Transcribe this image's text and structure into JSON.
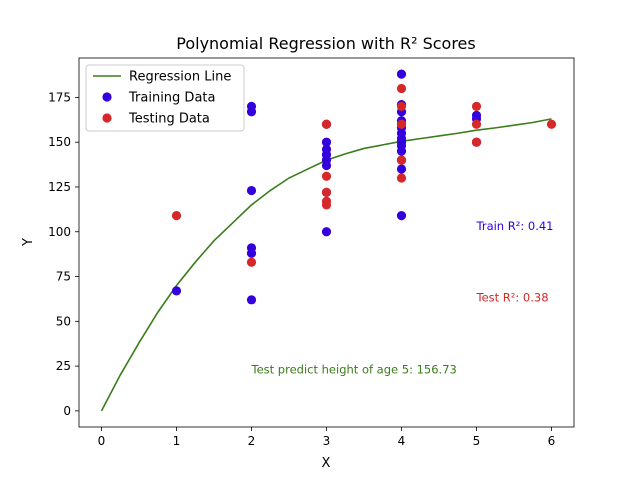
{
  "chart_data": {
    "type": "scatter",
    "title": "Polynomial Regression with R² Scores",
    "xlabel": "X",
    "ylabel": "Y",
    "xlim": [
      -0.3,
      6.3
    ],
    "ylim": [
      -9,
      197
    ],
    "xticks": [
      0,
      1,
      2,
      3,
      4,
      5,
      6
    ],
    "yticks": [
      0,
      25,
      50,
      75,
      100,
      125,
      150,
      175
    ],
    "legend_position": "top-left",
    "colors": {
      "regression": "#3a7d1b",
      "training": "#3300dd",
      "testing": "#d62828"
    },
    "legend": {
      "regression": "Regression Line",
      "training": "Training Data",
      "testing": "Testing Data"
    },
    "regression_line": {
      "x": [
        0,
        0.25,
        0.5,
        0.75,
        1,
        1.25,
        1.5,
        1.75,
        2,
        2.25,
        2.5,
        2.75,
        3,
        3.25,
        3.5,
        3.75,
        4,
        4.25,
        4.5,
        4.75,
        5,
        5.25,
        5.5,
        5.75,
        6
      ],
      "y": [
        0,
        20,
        38,
        55,
        70,
        83,
        95,
        105,
        115,
        123,
        130,
        135,
        140,
        143.5,
        146.5,
        148.5,
        150.5,
        152,
        153.5,
        155,
        156.7,
        158,
        159.5,
        161,
        163
      ]
    },
    "series": [
      {
        "name": "Training Data",
        "color_key": "training",
        "x": [
          1,
          2,
          2,
          2,
          2,
          2,
          2,
          3,
          3,
          3,
          3,
          3,
          3,
          3,
          3,
          4,
          4,
          4,
          4,
          4,
          4,
          4,
          4,
          4,
          4,
          4,
          4,
          4,
          4,
          5,
          5,
          5
        ],
        "y": [
          67,
          62,
          88,
          91,
          123,
          167,
          170,
          100,
          122,
          137,
          140,
          143,
          146,
          150,
          160,
          109,
          135,
          140,
          145,
          148,
          150,
          152,
          155,
          158,
          160,
          162,
          167,
          171,
          188,
          150,
          163,
          165
        ]
      },
      {
        "name": "Testing Data",
        "color_key": "testing",
        "x": [
          1,
          2,
          3,
          3,
          3,
          3,
          3,
          4,
          4,
          4,
          4,
          4,
          5,
          5,
          5,
          6
        ],
        "y": [
          109,
          83,
          115,
          117,
          122,
          131,
          160,
          130,
          140,
          160,
          170,
          180,
          150,
          160,
          170,
          160
        ]
      }
    ],
    "annotations": [
      {
        "text": "Train R²: 0.41",
        "x": 5.0,
        "y": 101,
        "color_key": "training"
      },
      {
        "text": "Test R²: 0.38",
        "x": 5.0,
        "y": 61,
        "color_key": "testing"
      },
      {
        "text": "Test predict height of age 5: 156.73",
        "x": 2.0,
        "y": 21,
        "color_key": "regression"
      }
    ]
  }
}
